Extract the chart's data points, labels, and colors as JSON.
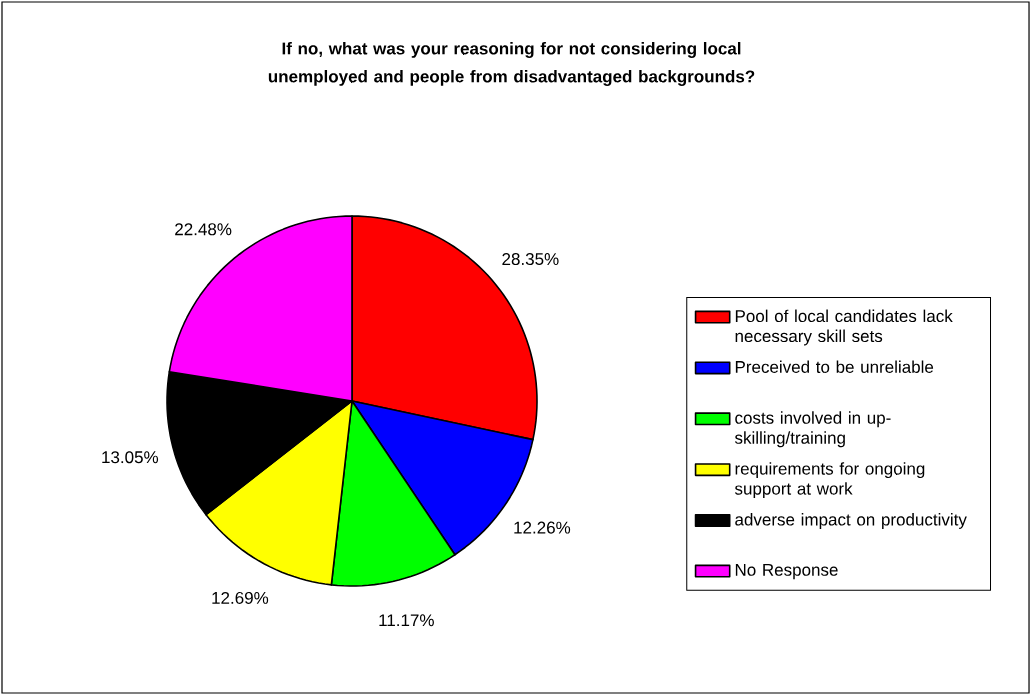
{
  "chart_data": {
    "type": "pie",
    "title": "If no, what was your reasoning for not considering local unemployed and people from disadvantaged backgrounds?",
    "categories": [
      "Pool of local candidates lack necessary skill sets",
      "Preceived to be unreliable",
      "costs involved in up-skilling/training",
      "requirements for ongoing support at work",
      "adverse impact on productivity",
      "No Response"
    ],
    "values": [
      28.35,
      12.26,
      11.17,
      12.69,
      13.05,
      22.48
    ],
    "value_labels": [
      "28.35%",
      "12.26%",
      "11.17%",
      "12.69%",
      "13.05%",
      "22.48%"
    ],
    "colors": [
      "#ff0000",
      "#0000ff",
      "#00ff00",
      "#ffff00",
      "#000000",
      "#ff00ff"
    ],
    "legend": "right"
  }
}
